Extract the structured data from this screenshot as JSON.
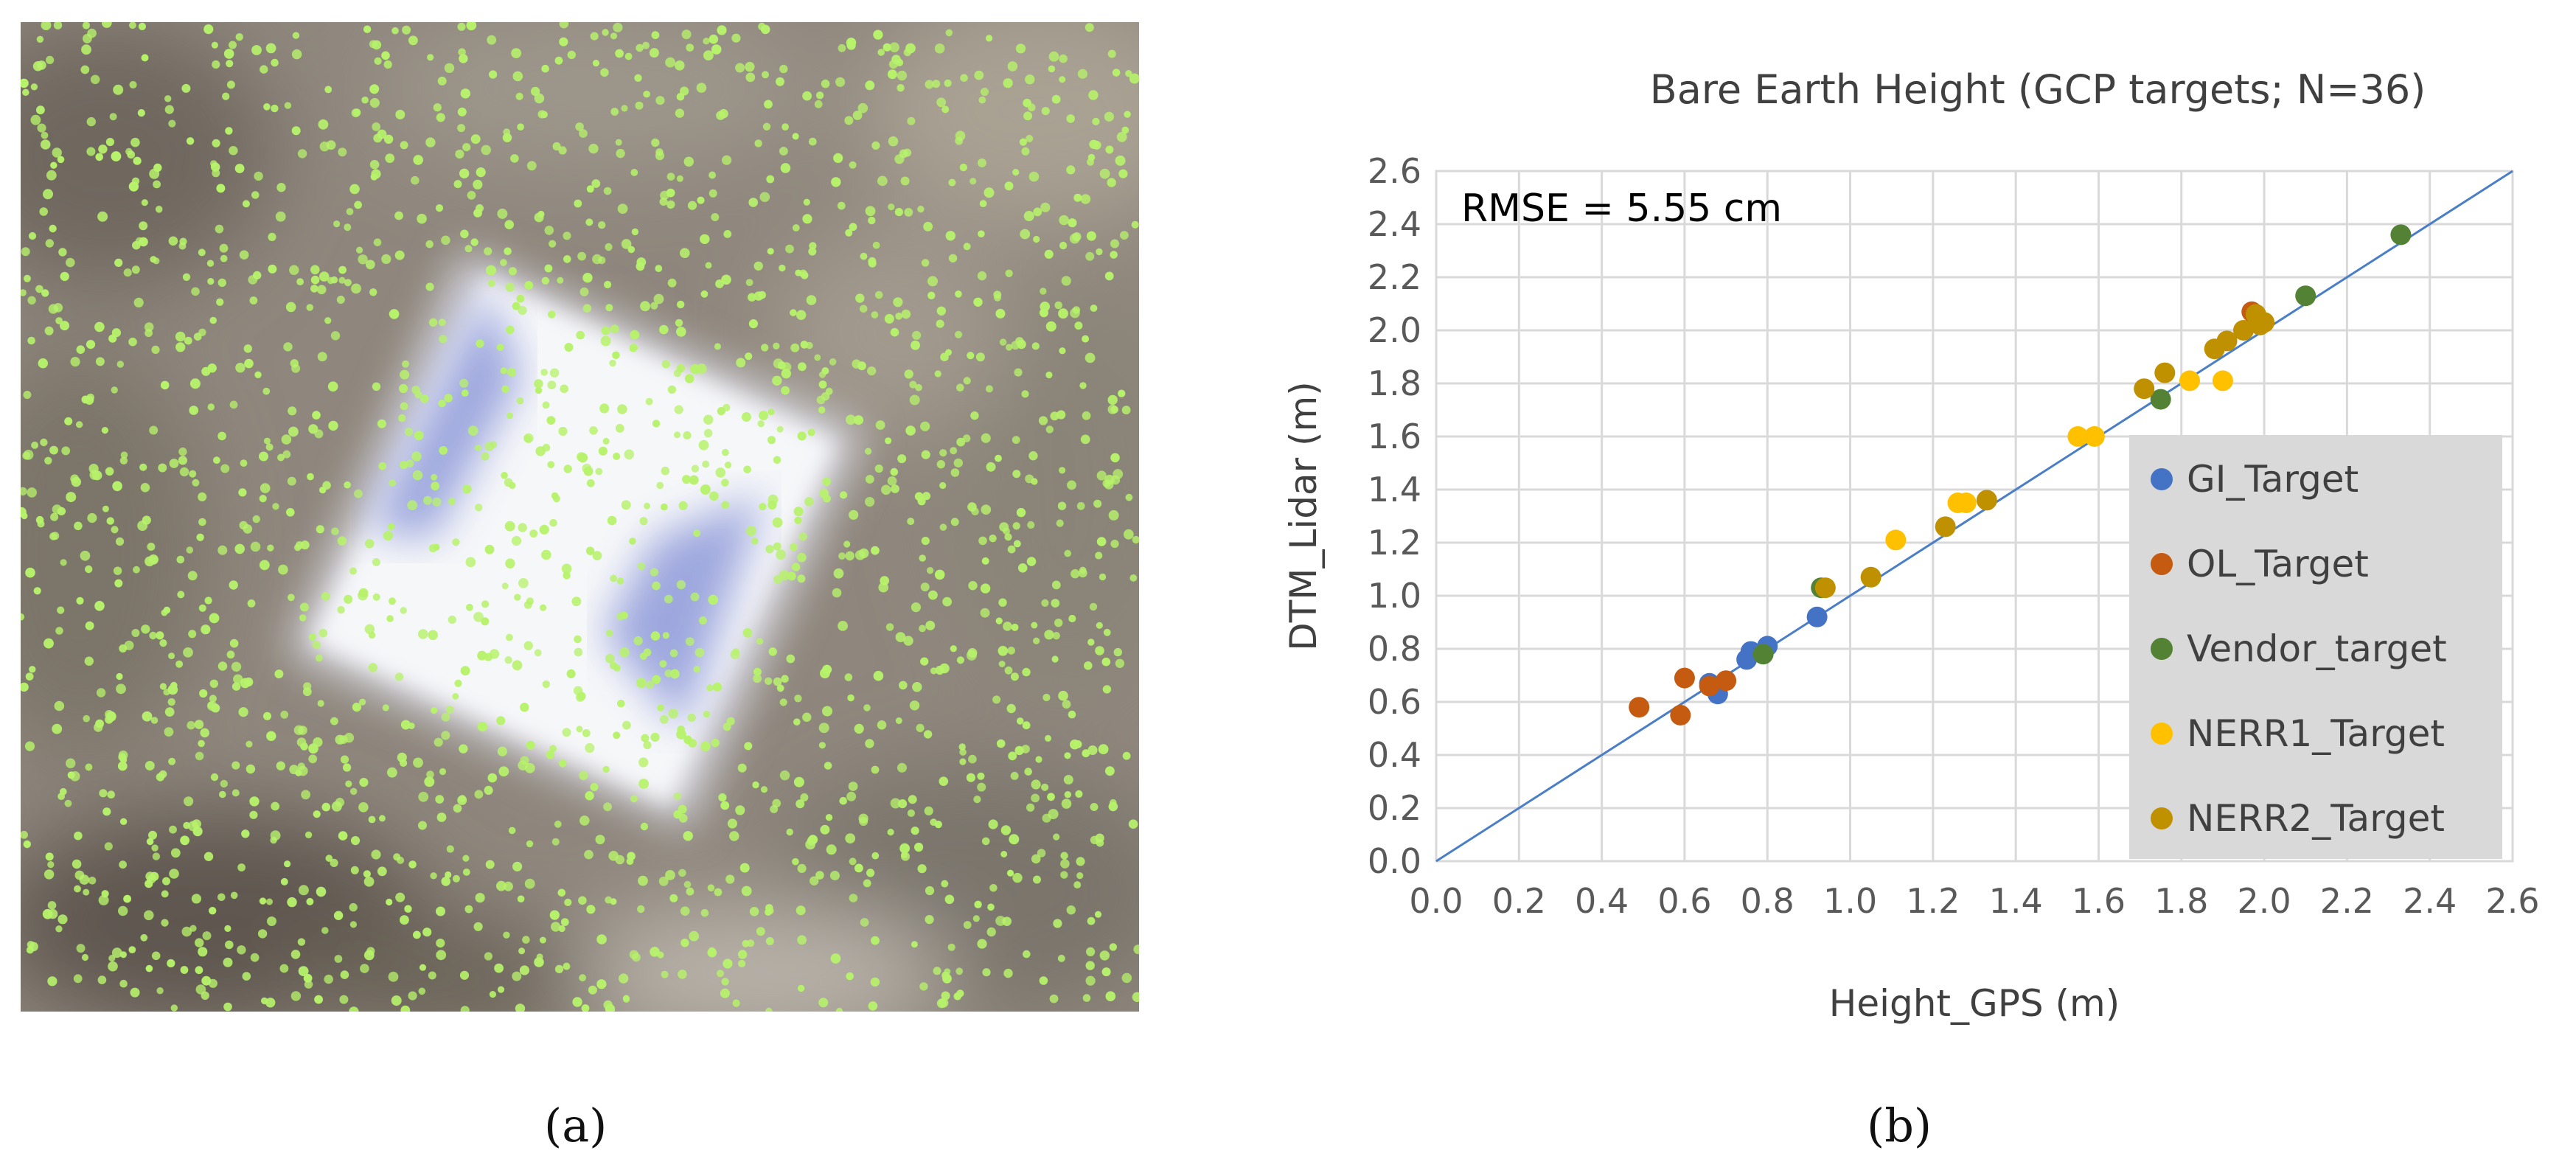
{
  "panel_a": {
    "caption": "(a)",
    "pattern_colors": {
      "background": "#8f877d",
      "target": "#f6f7f9",
      "target_shadow": "#8e9ad9",
      "points": "#b7f26b"
    }
  },
  "panel_b": {
    "caption": "(b)"
  },
  "chart_data": {
    "type": "scatter",
    "title": "Bare Earth Height (GCP targets; N=36)",
    "xlabel": "Height_GPS (m)",
    "ylabel": "DTM_Lidar (m)",
    "xlim": [
      0,
      2.6
    ],
    "ylim": [
      0,
      2.6
    ],
    "xticks": [
      "0.0",
      "0.2",
      "0.4",
      "0.6",
      "0.8",
      "1.0",
      "1.2",
      "1.4",
      "1.6",
      "1.8",
      "2.0",
      "2.2",
      "2.4",
      "2.6"
    ],
    "yticks": [
      "0.0",
      "0.2",
      "0.4",
      "0.6",
      "0.8",
      "1.0",
      "1.2",
      "1.4",
      "1.6",
      "1.8",
      "2.0",
      "2.2",
      "2.4",
      "2.6"
    ],
    "grid": true,
    "annotation": "RMSE = 5.55 cm",
    "legend_position": "right",
    "reference_line": {
      "from": [
        0,
        0
      ],
      "to": [
        2.6,
        2.6
      ],
      "color": "#4a7ec7"
    },
    "series": [
      {
        "name": "GI_Target",
        "color": "#4472c4",
        "points": [
          [
            0.66,
            0.67
          ],
          [
            0.68,
            0.63
          ],
          [
            0.75,
            0.76
          ],
          [
            0.76,
            0.79
          ],
          [
            0.8,
            0.81
          ],
          [
            0.92,
            0.92
          ]
        ]
      },
      {
        "name": "OL_Target",
        "color": "#c55a11",
        "points": [
          [
            0.49,
            0.58
          ],
          [
            0.59,
            0.55
          ],
          [
            0.6,
            0.69
          ],
          [
            0.66,
            0.66
          ],
          [
            0.7,
            0.68
          ],
          [
            1.97,
            2.07
          ]
        ]
      },
      {
        "name": "Vendor_target",
        "color": "#548235",
        "points": [
          [
            0.79,
            0.78
          ],
          [
            0.93,
            1.03
          ],
          [
            1.75,
            1.74
          ],
          [
            2.1,
            2.13
          ],
          [
            2.33,
            2.36
          ]
        ]
      },
      {
        "name": "NERR1_Target",
        "color": "#ffc000",
        "points": [
          [
            1.11,
            1.21
          ],
          [
            1.26,
            1.35
          ],
          [
            1.28,
            1.35
          ],
          [
            1.55,
            1.6
          ],
          [
            1.59,
            1.6
          ],
          [
            1.82,
            1.81
          ],
          [
            1.9,
            1.81
          ]
        ]
      },
      {
        "name": "NERR2_Target",
        "color": "#bf9000",
        "points": [
          [
            0.94,
            1.03
          ],
          [
            1.05,
            1.07
          ],
          [
            1.23,
            1.26
          ],
          [
            1.33,
            1.36
          ],
          [
            1.71,
            1.78
          ],
          [
            1.76,
            1.84
          ],
          [
            1.88,
            1.93
          ],
          [
            1.91,
            1.96
          ],
          [
            1.95,
            2.0
          ],
          [
            1.99,
            2.02
          ],
          [
            2.0,
            2.03
          ],
          [
            1.98,
            2.06
          ]
        ]
      }
    ]
  }
}
